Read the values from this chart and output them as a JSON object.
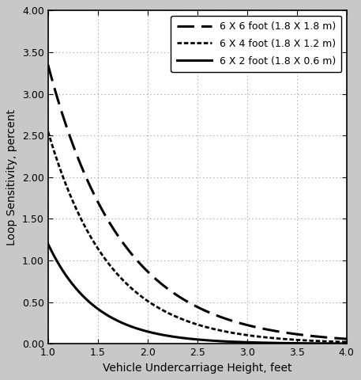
{
  "title": "",
  "xlabel": "Vehicle Undercarriage Height, feet",
  "ylabel": "Loop Sensitivity, percent",
  "xlim": [
    1.0,
    4.0
  ],
  "ylim": [
    0.0,
    4.0
  ],
  "xticks": [
    1.0,
    1.5,
    2.0,
    2.5,
    3.0,
    3.5,
    4.0
  ],
  "yticks": [
    0.0,
    0.5,
    1.0,
    1.5,
    2.0,
    2.5,
    3.0,
    3.5,
    4.0
  ],
  "curves": [
    {
      "label": "6 X 6 foot (1.8 X 1.8 m)",
      "style": "dashed",
      "linewidth": 2.2,
      "color": "#000000",
      "scale": 3.35,
      "decay": 1.35
    },
    {
      "label": "6 X 4 foot (1.8 X 1.2 m)",
      "style": "densely_dotted",
      "linewidth": 2.0,
      "color": "#000000",
      "scale": 2.55,
      "decay": 1.6
    },
    {
      "label": "6 X 2 foot (1.8 X 0.6 m)",
      "style": "solid",
      "linewidth": 2.2,
      "color": "#000000",
      "scale": 1.2,
      "decay": 2.1
    }
  ],
  "grid_color": "#999999",
  "background_color": "#ffffff",
  "plot_bg_color": "#ffffff",
  "figure_bg_color": "#c8c8c8",
  "legend_loc": "upper right",
  "legend_fontsize": 9.0
}
